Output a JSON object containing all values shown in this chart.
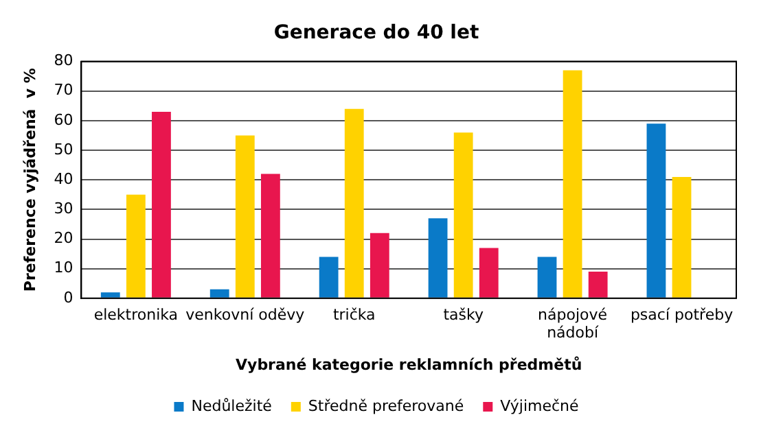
{
  "chart_data": {
    "type": "bar",
    "title": "Generace do 40 let",
    "xlabel": "Vybrané kategorie reklamních předmětů",
    "ylabel": "Preference vyjádřená  v %",
    "categories": [
      "elektronika",
      "venkovní oděvy",
      "trička",
      "tašky",
      "nápojové nádobí",
      "psací potřeby"
    ],
    "series": [
      {
        "name": "Nedůležité",
        "color": "#0a7ac8",
        "values": [
          2,
          3,
          14,
          27,
          14,
          59
        ]
      },
      {
        "name": "Středně preferované",
        "color": "#ffd200",
        "values": [
          35,
          55,
          64,
          56,
          77,
          41
        ]
      },
      {
        "name": "Výjimečné",
        "color": "#e8164e",
        "values": [
          63,
          42,
          22,
          17,
          9,
          0
        ]
      }
    ],
    "ylim": [
      0,
      80
    ],
    "yticks": [
      0,
      10,
      20,
      30,
      40,
      50,
      60,
      70,
      80
    ],
    "grid": "y",
    "legend": "bottom"
  }
}
